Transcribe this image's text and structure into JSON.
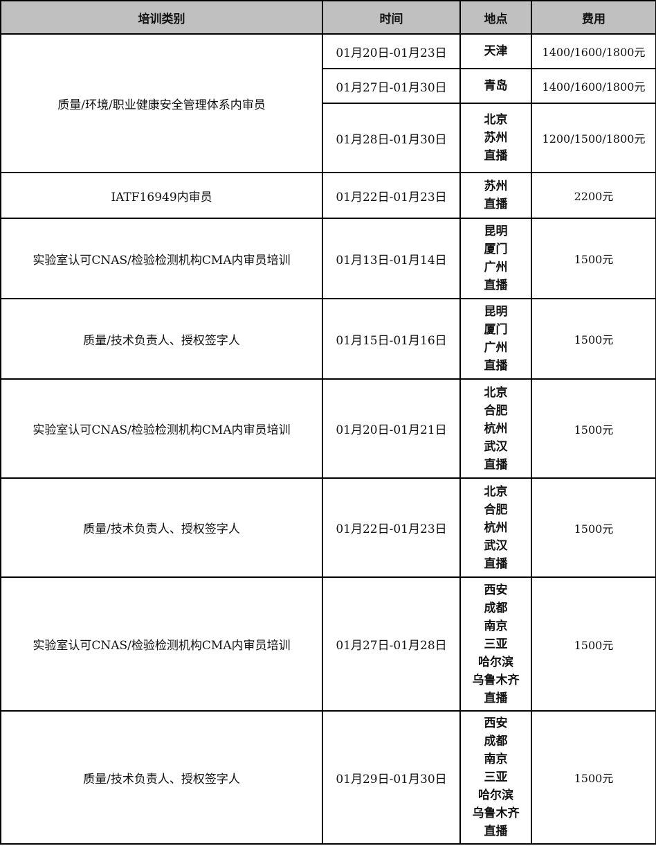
{
  "header": {
    "category": "培训类别",
    "time": "时间",
    "location": "地点",
    "fee": "费用"
  },
  "header_bg": "#c0c0c0",
  "rows": [
    {
      "category": "质量/环境/职业健康安全管理体系内审员",
      "sessions": [
        {
          "time": "01月20日-01月23日",
          "locations": [
            "天津"
          ],
          "fee": "1400/1600/1800元"
        },
        {
          "time": "01月27日-01月30日",
          "locations": [
            "青岛"
          ],
          "fee": "1400/1600/1800元"
        },
        {
          "time": "01月28日-01月30日",
          "locations": [
            "北京",
            "苏州",
            "直播"
          ],
          "fee": "1200/1500/1800元"
        }
      ]
    },
    {
      "category": "IATF16949内审员",
      "sessions": [
        {
          "time": "01月22日-01月23日",
          "locations": [
            "苏州",
            "直播"
          ],
          "fee": "2200元"
        }
      ]
    },
    {
      "category": "实验室认可CNAS/检验检测机构CMA内审员培训",
      "sessions": [
        {
          "time": "01月13日-01月14日",
          "locations": [
            "昆明",
            "厦门",
            "广州",
            "直播"
          ],
          "fee": "1500元"
        }
      ]
    },
    {
      "category": "质量/技术负责人、授权签字人",
      "sessions": [
        {
          "time": "01月15日-01月16日",
          "locations": [
            "昆明",
            "厦门",
            "广州",
            "直播"
          ],
          "fee": "1500元"
        }
      ]
    },
    {
      "category": "实验室认可CNAS/检验检测机构CMA内审员培训",
      "sessions": [
        {
          "time": "01月20日-01月21日",
          "locations": [
            "北京",
            "合肥",
            "杭州",
            "武汉",
            "直播"
          ],
          "fee": "1500元"
        }
      ]
    },
    {
      "category": "质量/技术负责人、授权签字人",
      "sessions": [
        {
          "time": "01月22日-01月23日",
          "locations": [
            "北京",
            "合肥",
            "杭州",
            "武汉",
            "直播"
          ],
          "fee": "1500元"
        }
      ]
    },
    {
      "category": "实验室认可CNAS/检验检测机构CMA内审员培训",
      "sessions": [
        {
          "time": "01月27日-01月28日",
          "locations": [
            "西安",
            "成都",
            "南京",
            "三亚",
            "哈尔滨",
            "乌鲁木齐",
            "直播"
          ],
          "fee": "1500元"
        }
      ]
    },
    {
      "category": "质量/技术负责人、授权签字人",
      "sessions": [
        {
          "time": "01月29日-01月30日",
          "locations": [
            "西安",
            "成都",
            "南京",
            "三亚",
            "哈尔滨",
            "乌鲁木齐",
            "直播"
          ],
          "fee": "1500元"
        }
      ]
    }
  ]
}
